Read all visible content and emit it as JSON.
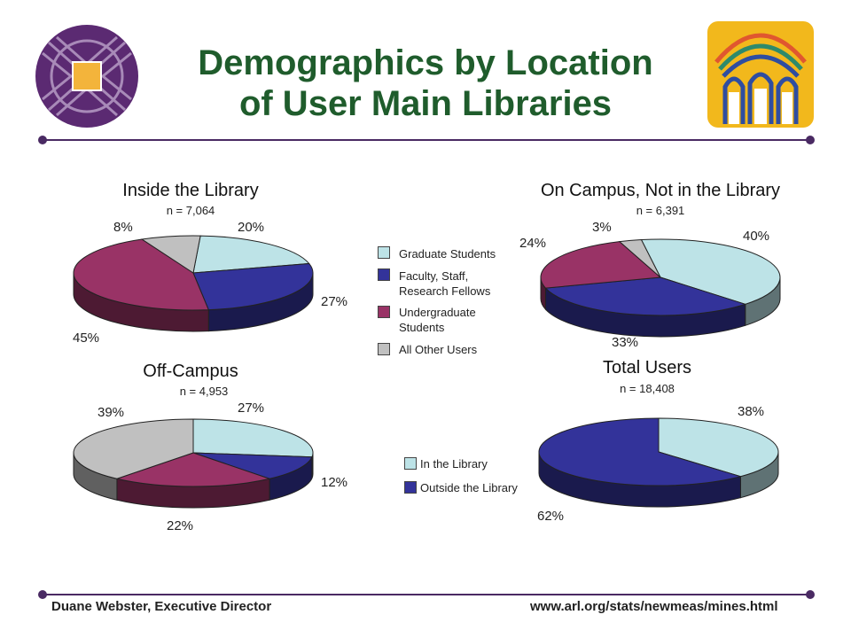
{
  "slide": {
    "title_line1": "Demographics by Location",
    "title_line2": "of User Main Libraries",
    "footer_left": "Duane Webster, Executive Director",
    "footer_right": "www.arl.org/stats/newmeas/mines.html",
    "colors": {
      "title": "#1f5c2c",
      "rule": "#4a2a63",
      "graduate": "#bde3e7",
      "faculty": "#33339a",
      "undergraduate": "#993366",
      "other": "#c0c0c0"
    },
    "logos": [
      "arl-purple-logo",
      "library-arches-logo"
    ]
  },
  "legend_groups": {
    "items": [
      {
        "label_line1": "Graduate Students",
        "label_line2": "",
        "color": "#bde3e7"
      },
      {
        "label_line1": "Faculty, Staff,",
        "label_line2": "Research Fellows",
        "color": "#33339a"
      },
      {
        "label_line1": "Undergraduate",
        "label_line2": "Students",
        "color": "#993366"
      },
      {
        "label_line1": "All Other Users",
        "label_line2": "",
        "color": "#c0c0c0"
      }
    ]
  },
  "legend_total": {
    "items": [
      {
        "label": "In the Library",
        "color": "#bde3e7"
      },
      {
        "label": "Outside the Library",
        "color": "#33339a"
      }
    ]
  },
  "chart_data": [
    {
      "type": "pie",
      "title": "Inside the Library",
      "subtitle": "n = 7,064",
      "categories": [
        "Graduate Students",
        "Faculty, Staff, Research Fellows",
        "Undergraduate Students",
        "All Other Users"
      ],
      "values": [
        20,
        27,
        45,
        8
      ],
      "labels": [
        "20%",
        "27%",
        "45%",
        "8%"
      ]
    },
    {
      "type": "pie",
      "title": "On Campus, Not in the Library",
      "subtitle": "n = 6,391",
      "categories": [
        "Graduate Students",
        "Faculty, Staff, Research Fellows",
        "Undergraduate Students",
        "All Other Users"
      ],
      "values": [
        40,
        33,
        24,
        3
      ],
      "labels": [
        "40%",
        "33%",
        "24%",
        "3%"
      ]
    },
    {
      "type": "pie",
      "title": "Off-Campus",
      "subtitle": "n = 4,953",
      "categories": [
        "Graduate Students",
        "Faculty, Staff, Research Fellows",
        "Undergraduate Students",
        "All Other Users"
      ],
      "values": [
        27,
        12,
        22,
        39
      ],
      "labels": [
        "27%",
        "12%",
        "22%",
        "39%"
      ]
    },
    {
      "type": "pie",
      "title": "Total Users",
      "subtitle": "n = 18,408",
      "categories": [
        "In the Library",
        "Outside the Library"
      ],
      "values": [
        38,
        62
      ],
      "labels": [
        "38%",
        "62%"
      ]
    }
  ]
}
